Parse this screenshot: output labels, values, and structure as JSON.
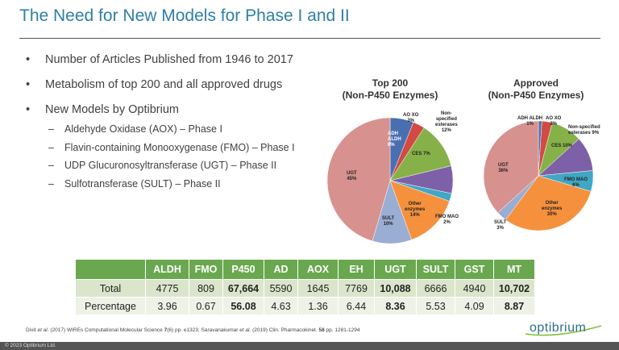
{
  "slide": {
    "title": "The Need for New Models for Phase I and II",
    "bullets": [
      "Number of Articles Published from 1946 to 2017",
      "Metabolism of top 200 and all approved drugs",
      "New Models by Optibrium"
    ],
    "sub_bullets": [
      "Aldehyde Oxidase (AOX) – Phase I",
      "Flavin-containing Monooxygenase (FMO) – Phase I",
      "UDP Glucuronosyltransferase (UGT) – Phase II",
      "Sulfotransferase (SULT) – Phase II"
    ],
    "citation_parts": [
      "Dixit ",
      "et al.",
      " (2017) WIREs Computational Molecular Science ",
      "7",
      "(6) pp. e1323; Saravanakumar ",
      "et al.",
      " (2019) Clin. Pharmacokinet. ",
      "58",
      " pp. 1281-1294"
    ],
    "logo_text": "optibrium",
    "copyright": "© 2023 Optibrium Ltd."
  },
  "chart_data": [
    {
      "type": "pie",
      "title_line1": "Top 200",
      "title_line2": "(Non-P450 Enzymes)",
      "labels": [
        "ADH ALDH",
        "AO XO",
        "Non-specified esterases",
        "CES",
        "FMO MAO",
        "Other enzymes",
        "SULT",
        "UGT"
      ],
      "values": [
        6,
        3,
        12,
        7,
        2,
        14,
        10,
        45
      ],
      "value_labels": [
        "6%",
        "3%",
        "12%",
        "7%",
        "2%",
        "14%",
        "10%",
        "45%"
      ],
      "colors": [
        "#4a6fb0",
        "#d24a43",
        "#86b148",
        "#7e60a8",
        "#40a7c4",
        "#f5913d",
        "#9aadd2",
        "#d7918e"
      ]
    },
    {
      "type": "pie",
      "title_line1": "Approved",
      "title_line2": "(Non-P450 Enzymes)",
      "labels": [
        "ADH ALDH",
        "AO XO",
        "Non-specified esterases",
        "CES",
        "FMO MAO",
        "Other enzymes",
        "SULT",
        "UGT"
      ],
      "values": [
        1,
        3,
        9,
        10,
        6,
        30,
        3,
        36
      ],
      "value_labels": [
        "1%",
        "3%",
        "9%",
        "10%",
        "6%",
        "30%",
        "3%",
        "36%"
      ],
      "colors": [
        "#4a6fb0",
        "#d24a43",
        "#86b148",
        "#7e60a8",
        "#40a7c4",
        "#f5913d",
        "#9aadd2",
        "#d7918e"
      ]
    }
  ],
  "pie_labels": {
    "top200": {
      "adh": [
        "ADH",
        "ALDH",
        "6%"
      ],
      "aoxo": [
        "AO XO",
        "3%"
      ],
      "nonspec": [
        "Non-",
        "specified",
        "esterases",
        "12%"
      ],
      "ces": "CES 7%",
      "fmo": [
        "FMO MAO",
        "2%"
      ],
      "other": [
        "Other",
        "enzymes",
        "14%"
      ],
      "sult": [
        "SULT",
        "10%"
      ],
      "ugt": [
        "UGT",
        "45%"
      ]
    },
    "approved": {
      "adh": [
        "ADH ALDH",
        "1%"
      ],
      "aoxo": [
        "AO XO",
        "3%"
      ],
      "nonspec": "Non-specified esterases 9%",
      "ces": "CES 10%",
      "fmo": [
        "FMO MAO",
        "6%"
      ],
      "other": [
        "Other",
        "enzymes",
        "30%"
      ],
      "sult": [
        "SULT",
        "3%"
      ],
      "ugt": [
        "UGT",
        "36%"
      ]
    }
  },
  "table": {
    "headers": [
      "",
      "ALDH",
      "FMO",
      "P450",
      "AD",
      "AOX",
      "EH",
      "UGT",
      "SULT",
      "GST",
      "MT"
    ],
    "rows": [
      [
        "Total",
        "4775",
        "809",
        "67,664",
        "5590",
        "1645",
        "7769",
        "10,088",
        "6666",
        "4940",
        "10,702"
      ],
      [
        "Percentage",
        "3.96",
        "0.67",
        "56.08",
        "4.63",
        "1.36",
        "6.44",
        "8.36",
        "5.53",
        "4.09",
        "8.87"
      ]
    ],
    "bold_columns": [
      3,
      7,
      10
    ]
  }
}
